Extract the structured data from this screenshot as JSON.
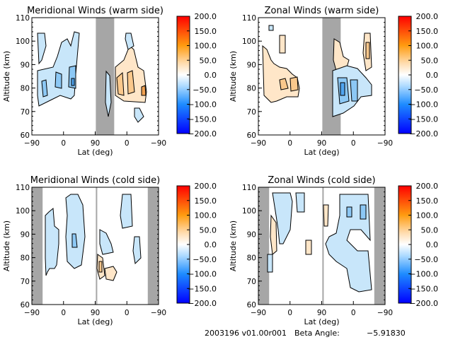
{
  "chart_data": [
    {
      "type": "heatmap",
      "title": "Meridional Winds (warm side)",
      "xlabel": "Lat (deg)",
      "ylabel": "Altitude (km)",
      "x_tick_labels": [
        "-90",
        "0",
        "90",
        "0",
        "-90"
      ],
      "y_ticks": [
        60,
        70,
        80,
        90,
        100,
        110
      ],
      "ylim": [
        60,
        110
      ],
      "shaded_band": {
        "from_lat": "60 (ascending)",
        "to_lat": "~120 (descending)"
      },
      "colorbar": {
        "min": -200,
        "max": 200,
        "tick_labels": [
          "200.0",
          "150.0",
          "100.0",
          "50.0",
          "0.0",
          "-50.0",
          "-100.0",
          "-150.0",
          "-200.0"
        ]
      },
      "features": [
        {
          "sign": "negative",
          "lat_range": [
            -80,
            45
          ],
          "alt_range": [
            73,
            108
          ],
          "peak": -60
        },
        {
          "sign": "positive",
          "lat_range": "descending 80 to -30",
          "alt_range": [
            72,
            97
          ],
          "peak": 70
        },
        {
          "sign": "negative",
          "lat_range": "descending -20 to -40",
          "alt_range": [
            64,
            71
          ],
          "peak": -30
        }
      ]
    },
    {
      "type": "heatmap",
      "title": "Zonal Winds (warm side)",
      "xlabel": "Lat (deg)",
      "ylabel": "Altitude (km)",
      "x_tick_labels": [
        "-90",
        "0",
        "90",
        "0",
        "-90"
      ],
      "y_ticks": [
        60,
        70,
        80,
        90,
        100,
        110
      ],
      "ylim": [
        60,
        110
      ],
      "colorbar": {
        "min": -200,
        "max": 200,
        "tick_labels": [
          "200.0",
          "150.0",
          "100.0",
          "50.0",
          "0.0",
          "-50.0",
          "-100.0",
          "-150.0",
          "-200.0"
        ]
      },
      "features": [
        {
          "sign": "positive",
          "lat_range": [
            -80,
            25
          ],
          "alt_range": [
            75,
            102
          ],
          "peak": 90
        },
        {
          "sign": "positive",
          "lat_range": "descending 90 to -50",
          "alt_range": [
            86,
            106
          ],
          "peak": 60
        },
        {
          "sign": "negative",
          "lat_range": "descending 90 to -40",
          "alt_range": [
            65,
            89
          ],
          "peak": -90
        }
      ]
    },
    {
      "type": "heatmap",
      "title": "Meridional Winds (cold side)",
      "xlabel": "Lat (deg)",
      "ylabel": "Altitude (km)",
      "x_tick_labels": [
        "-90",
        "0",
        "90",
        "0",
        "-90"
      ],
      "y_ticks": [
        60,
        70,
        80,
        90,
        100,
        110
      ],
      "ylim": [
        60,
        110
      ],
      "colorbar": {
        "min": -200,
        "max": 200,
        "tick_labels": [
          "200.0",
          "150.0",
          "100.0",
          "50.0",
          "0.0",
          "-50.0",
          "-100.0",
          "-150.0",
          "-200.0"
        ]
      },
      "features": [
        {
          "sign": "negative",
          "lat_range": [
            -60,
            -30
          ],
          "alt_range": [
            73,
            105
          ],
          "peak": -40
        },
        {
          "sign": "negative",
          "lat_range": [
            10,
            60
          ],
          "alt_range": [
            75,
            107
          ],
          "peak": -70
        },
        {
          "sign": "positive",
          "lat_range": "descending 90 to 30",
          "alt_range": [
            70,
            83
          ],
          "peak": 50
        },
        {
          "sign": "negative",
          "lat_range": "descending 20 to -40",
          "alt_range": [
            78,
            108
          ],
          "peak": -50
        }
      ]
    },
    {
      "type": "heatmap",
      "title": "Zonal Winds (cold side)",
      "xlabel": "Lat (deg)",
      "ylabel": "Altitude (km)",
      "x_tick_labels": [
        "-90",
        "0",
        "90",
        "0",
        "-90"
      ],
      "y_ticks": [
        60,
        70,
        80,
        90,
        100,
        110
      ],
      "ylim": [
        60,
        110
      ],
      "colorbar": {
        "min": -200,
        "max": 200,
        "tick_labels": [
          "200.0",
          "150.0",
          "100.0",
          "50.0",
          "0.0",
          "-50.0",
          "-100.0",
          "-150.0",
          "-200.0"
        ]
      },
      "features": [
        {
          "sign": "negative",
          "lat_range": [
            -45,
            0
          ],
          "alt_range": [
            85,
            108
          ],
          "peak": -40
        },
        {
          "sign": "positive",
          "lat_range": [
            -60,
            -50
          ],
          "alt_range": [
            78,
            98
          ],
          "peak": 30
        },
        {
          "sign": "negative",
          "lat_range": "descending 90 to -45",
          "alt_range": [
            65,
            108
          ],
          "peak": -80
        },
        {
          "sign": "positive",
          "lat_range": "descending 80 to 70",
          "alt_range": [
            93,
            104
          ],
          "peak": 30
        }
      ]
    }
  ],
  "footer": {
    "date_version": "2003196 v01.00r001",
    "beta_label": "Beta Angle:",
    "beta_value": "-5.91830"
  }
}
